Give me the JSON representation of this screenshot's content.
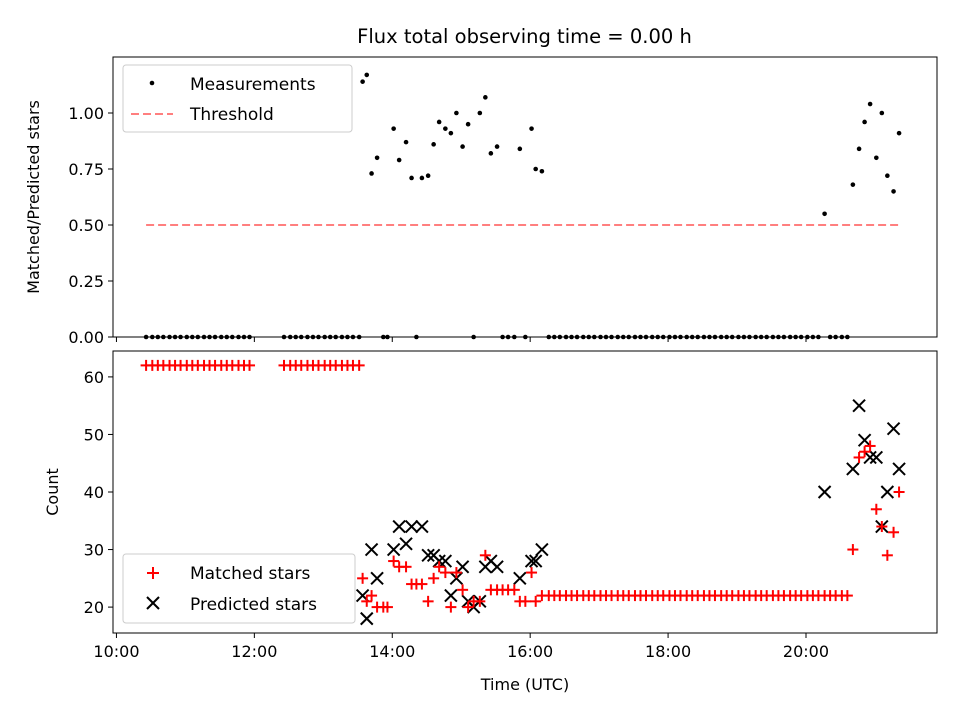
{
  "figure": {
    "title": "Flux total observing time = 0.00 h"
  },
  "chart_data": [
    {
      "type": "scatter",
      "ylabel": "Matched/Predicted stars",
      "xlim": [
        9.95,
        21.9
      ],
      "ylim": [
        0,
        1.25
      ],
      "yticks": [
        0.0,
        0.25,
        0.5,
        0.75,
        1.0
      ],
      "ytick_labels": [
        "0.00",
        "0.25",
        "0.50",
        "0.75",
        "1.00"
      ],
      "grid": false,
      "legend": {
        "placement": "top-left",
        "entries": [
          "Measurements",
          "Threshold"
        ]
      },
      "series": [
        {
          "name": "Measurements",
          "marker": "dot",
          "color": "#000000",
          "x": [
            10.43,
            10.52,
            10.6,
            10.68,
            10.77,
            10.85,
            10.93,
            11.02,
            11.1,
            11.18,
            11.27,
            11.35,
            11.43,
            11.52,
            11.6,
            11.68,
            11.77,
            11.85,
            11.93,
            12.43,
            12.52,
            12.6,
            12.68,
            12.77,
            12.85,
            12.93,
            13.02,
            13.1,
            13.18,
            13.27,
            13.35,
            13.43,
            13.52,
            13.57,
            13.63,
            13.7,
            13.78,
            13.87,
            13.93,
            14.02,
            14.1,
            14.2,
            14.28,
            14.35,
            14.43,
            14.52,
            14.6,
            14.68,
            14.77,
            14.85,
            14.93,
            15.02,
            15.1,
            15.18,
            15.27,
            15.35,
            15.43,
            15.52,
            15.6,
            15.68,
            15.77,
            15.85,
            15.93,
            16.02,
            16.08,
            16.17,
            16.27,
            16.35,
            16.43,
            16.52,
            16.6,
            16.68,
            16.77,
            16.85,
            16.93,
            17.02,
            17.1,
            17.18,
            17.27,
            17.35,
            17.43,
            17.52,
            17.6,
            17.68,
            17.77,
            17.85,
            17.93,
            18.02,
            18.1,
            18.18,
            18.27,
            18.35,
            18.43,
            18.52,
            18.6,
            18.68,
            18.77,
            18.85,
            18.93,
            19.02,
            19.1,
            19.18,
            19.27,
            19.35,
            19.43,
            19.52,
            19.6,
            19.68,
            19.77,
            19.85,
            19.93,
            20.02,
            20.1,
            20.18,
            20.27,
            20.35,
            20.43,
            20.52,
            20.6,
            20.68,
            20.77,
            20.85,
            20.93,
            21.02,
            21.1,
            21.18,
            21.27,
            21.35
          ],
          "y": [
            0,
            0,
            0,
            0,
            0,
            0,
            0,
            0,
            0,
            0,
            0,
            0,
            0,
            0,
            0,
            0,
            0,
            0,
            0,
            0,
            0,
            0,
            0,
            0,
            0,
            0,
            0,
            0,
            0,
            0,
            0,
            0,
            0,
            1.14,
            1.17,
            0.73,
            0.8,
            0,
            0,
            0.93,
            0.79,
            0.87,
            0.71,
            0,
            0.71,
            0.72,
            0.86,
            0.96,
            0.93,
            0.91,
            1.0,
            0.85,
            0.95,
            0,
            1.0,
            1.07,
            0.82,
            0.85,
            0,
            0,
            0,
            0.84,
            0,
            0.93,
            0.75,
            0.74,
            0,
            0,
            0,
            0,
            0,
            0,
            0,
            0,
            0,
            0,
            0,
            0,
            0,
            0,
            0,
            0,
            0,
            0,
            0,
            0,
            0,
            0,
            0,
            0,
            0,
            0,
            0,
            0,
            0,
            0,
            0,
            0,
            0,
            0,
            0,
            0,
            0,
            0,
            0,
            0,
            0,
            0,
            0,
            0,
            0,
            0,
            0,
            0,
            0.55,
            0,
            0,
            0,
            0,
            0.68,
            0.84,
            0.96,
            1.04,
            0.8,
            1.0,
            0.72,
            0.65,
            0.91
          ]
        },
        {
          "name": "Threshold",
          "style": "dashed",
          "color": "#ff7f7f",
          "x": [
            10.43,
            21.35
          ],
          "y": [
            0.5,
            0.5
          ]
        }
      ]
    },
    {
      "type": "scatter",
      "xlabel": "Time (UTC)",
      "ylabel": "Count",
      "xlim": [
        9.95,
        21.9
      ],
      "ylim": [
        15.5,
        64.5
      ],
      "xticks": [
        10,
        12,
        14,
        16,
        18,
        20
      ],
      "xtick_labels": [
        "10:00",
        "12:00",
        "14:00",
        "16:00",
        "18:00",
        "20:00"
      ],
      "yticks": [
        20,
        30,
        40,
        50,
        60
      ],
      "ytick_labels": [
        "20",
        "30",
        "40",
        "50",
        "60"
      ],
      "grid": false,
      "legend": {
        "placement": "bottom-left",
        "entries": [
          "Matched stars",
          "Predicted stars"
        ]
      },
      "series": [
        {
          "name": "Matched stars",
          "marker": "plus",
          "color": "#ff0000",
          "x": [
            10.43,
            10.52,
            10.6,
            10.68,
            10.77,
            10.85,
            10.93,
            11.02,
            11.1,
            11.18,
            11.27,
            11.35,
            11.43,
            11.52,
            11.6,
            11.68,
            11.77,
            11.85,
            11.93,
            12.43,
            12.52,
            12.6,
            12.68,
            12.77,
            12.85,
            12.93,
            13.02,
            13.1,
            13.18,
            13.27,
            13.35,
            13.43,
            13.52,
            13.57,
            13.63,
            13.7,
            13.78,
            13.87,
            13.93,
            14.02,
            14.1,
            14.2,
            14.28,
            14.35,
            14.43,
            14.52,
            14.6,
            14.68,
            14.77,
            14.85,
            14.93,
            15.02,
            15.1,
            15.18,
            15.27,
            15.35,
            15.43,
            15.52,
            15.6,
            15.68,
            15.77,
            15.85,
            15.93,
            16.02,
            16.08,
            16.17,
            16.27,
            16.35,
            16.43,
            16.52,
            16.6,
            16.68,
            16.77,
            16.85,
            16.93,
            17.02,
            17.1,
            17.18,
            17.27,
            17.35,
            17.43,
            17.52,
            17.6,
            17.68,
            17.77,
            17.85,
            17.93,
            18.02,
            18.1,
            18.18,
            18.27,
            18.35,
            18.43,
            18.52,
            18.6,
            18.68,
            18.77,
            18.85,
            18.93,
            19.02,
            19.1,
            19.18,
            19.27,
            19.35,
            19.43,
            19.52,
            19.6,
            19.68,
            19.77,
            19.85,
            19.93,
            20.02,
            20.1,
            20.18,
            20.27,
            20.35,
            20.43,
            20.52,
            20.6,
            20.68,
            20.77,
            20.85,
            20.93,
            21.02,
            21.1,
            21.18,
            21.27,
            21.35
          ],
          "y": [
            62,
            62,
            62,
            62,
            62,
            62,
            62,
            62,
            62,
            62,
            62,
            62,
            62,
            62,
            62,
            62,
            62,
            62,
            62,
            62,
            62,
            62,
            62,
            62,
            62,
            62,
            62,
            62,
            62,
            62,
            62,
            62,
            62,
            25,
            21,
            22,
            20,
            20,
            20,
            28,
            27,
            27,
            24,
            24,
            24,
            21,
            25,
            27,
            26,
            20,
            26,
            23,
            20,
            21,
            21,
            29,
            23,
            23,
            23,
            23,
            23,
            21,
            21,
            26,
            21,
            22,
            22,
            22,
            22,
            22,
            22,
            22,
            22,
            22,
            22,
            22,
            22,
            22,
            22,
            22,
            22,
            22,
            22,
            22,
            22,
            22,
            22,
            22,
            22,
            22,
            22,
            22,
            22,
            22,
            22,
            22,
            22,
            22,
            22,
            22,
            22,
            22,
            22,
            22,
            22,
            22,
            22,
            22,
            22,
            22,
            22,
            22,
            22,
            22,
            22,
            22,
            22,
            22,
            22,
            30,
            46,
            47,
            48,
            37,
            34,
            29,
            33,
            40
          ]
        },
        {
          "name": "Predicted stars",
          "marker": "x",
          "color": "#000000",
          "x": [
            13.57,
            13.63,
            13.7,
            13.78,
            14.02,
            14.1,
            14.2,
            14.28,
            14.43,
            14.52,
            14.6,
            14.68,
            14.77,
            14.85,
            14.93,
            15.02,
            15.1,
            15.18,
            15.27,
            15.35,
            15.43,
            15.52,
            15.85,
            16.02,
            16.08,
            16.17,
            20.27,
            20.68,
            20.77,
            20.85,
            20.93,
            21.02,
            21.1,
            21.18,
            21.27,
            21.35
          ],
          "y": [
            22,
            18,
            30,
            25,
            30,
            34,
            31,
            34,
            34,
            29,
            29,
            28,
            28,
            22,
            25,
            27,
            21,
            20,
            21,
            27,
            28,
            27,
            25,
            28,
            28,
            30,
            40,
            44,
            55,
            49,
            46,
            46,
            34,
            40,
            51,
            44
          ]
        }
      ]
    }
  ]
}
